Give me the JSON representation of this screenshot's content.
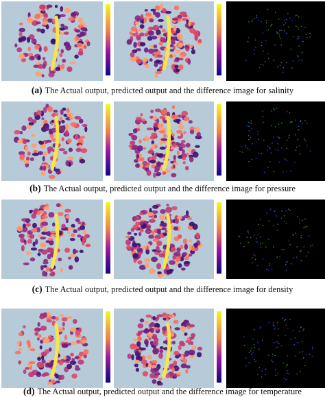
{
  "figure": {
    "panels": [
      {
        "label": "(a)",
        "caption": "The Actual output, predicted output and the difference image for salinity"
      },
      {
        "label": "(b)",
        "caption": "The Actual output, predicted output and the difference image for pressure"
      },
      {
        "label": "(c)",
        "caption": "The Actual output, predicted output and the difference image for density"
      },
      {
        "label": "(d)",
        "caption": "The Actual output, predicted output and the difference image for temperature"
      }
    ]
  }
}
